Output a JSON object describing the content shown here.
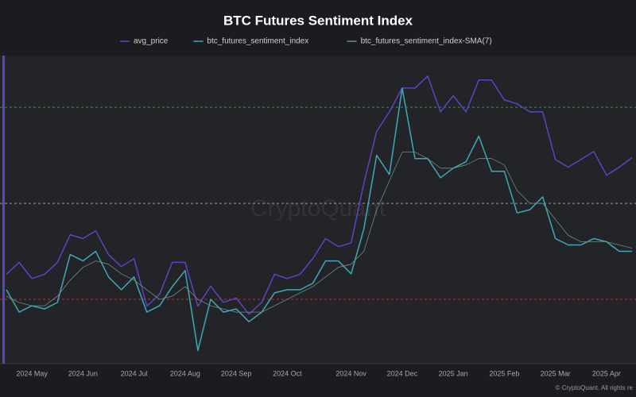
{
  "chart_data": {
    "type": "line",
    "title": "BTC Futures Sentiment Index",
    "watermark": "CryptoQuant",
    "footer": "© CryptoQuant. All rights re",
    "categories": [
      null,
      null,
      "2024 May",
      null,
      null,
      null,
      "2024 Jun",
      null,
      null,
      null,
      "2024 Jul",
      null,
      null,
      null,
      "2024 Aug",
      null,
      null,
      null,
      "2024 Sep",
      null,
      null,
      null,
      "2024 Oct",
      null,
      null,
      null,
      null,
      "2024 Nov",
      null,
      null,
      null,
      "2024 Dec",
      null,
      null,
      null,
      "2025 Jan",
      null,
      null,
      null,
      "2025 Feb",
      null,
      null,
      null,
      "2025 Mar",
      null,
      null,
      null,
      "2025 Apr",
      null,
      null
    ],
    "ylim": [
      0,
      0.96
    ],
    "y2lim": [
      44500,
      109000
    ],
    "reference_lines": [
      {
        "value": 0.8,
        "color": "#3f8f4a"
      },
      {
        "value": 0.5,
        "color": "#9a9a9a"
      },
      {
        "value": 0.2,
        "color": "#a83a3a"
      }
    ],
    "series": [
      {
        "name": "avg_price",
        "color": "#5b45c2",
        "axis": "y2",
        "width": 1.5,
        "values": [
          63200,
          65700,
          62300,
          63200,
          65700,
          71500,
          70700,
          72300,
          67300,
          64800,
          66500,
          56500,
          59000,
          65700,
          65700,
          56500,
          60700,
          57300,
          58200,
          54800,
          57300,
          63200,
          62300,
          63200,
          66500,
          70700,
          69000,
          69800,
          82300,
          93200,
          97300,
          102300,
          102300,
          104800,
          97300,
          100700,
          97300,
          104000,
          104000,
          99800,
          99000,
          97300,
          97300,
          87300,
          85700,
          87300,
          89000,
          84000,
          85700,
          87700
        ]
      },
      {
        "name": "btc_futures_sentiment_index",
        "color": "#3fa7b8",
        "width": 1.5,
        "values": [
          0.23,
          0.16,
          0.18,
          0.17,
          0.19,
          0.34,
          0.32,
          0.35,
          0.27,
          0.23,
          0.27,
          0.16,
          0.18,
          0.24,
          0.29,
          0.04,
          0.2,
          0.16,
          0.17,
          0.13,
          0.16,
          0.22,
          0.23,
          0.23,
          0.25,
          0.32,
          0.32,
          0.28,
          0.42,
          0.65,
          0.59,
          0.86,
          0.64,
          0.64,
          0.58,
          0.61,
          0.63,
          0.71,
          0.6,
          0.6,
          0.47,
          0.48,
          0.52,
          0.39,
          0.37,
          0.37,
          0.39,
          0.38,
          0.35,
          0.35
        ]
      },
      {
        "name": "btc_futures_sentiment_index-SMA(7)",
        "color": "#6f8d86",
        "width": 0.8,
        "values": [
          0.21,
          0.19,
          0.18,
          0.18,
          0.21,
          0.26,
          0.3,
          0.32,
          0.31,
          0.28,
          0.26,
          0.23,
          0.2,
          0.21,
          0.24,
          0.2,
          0.18,
          0.17,
          0.16,
          0.16,
          0.16,
          0.18,
          0.2,
          0.22,
          0.24,
          0.27,
          0.3,
          0.31,
          0.35,
          0.48,
          0.57,
          0.66,
          0.66,
          0.64,
          0.61,
          0.61,
          0.62,
          0.64,
          0.64,
          0.62,
          0.54,
          0.5,
          0.5,
          0.45,
          0.4,
          0.38,
          0.38,
          0.38,
          0.37,
          0.36
        ]
      }
    ]
  }
}
